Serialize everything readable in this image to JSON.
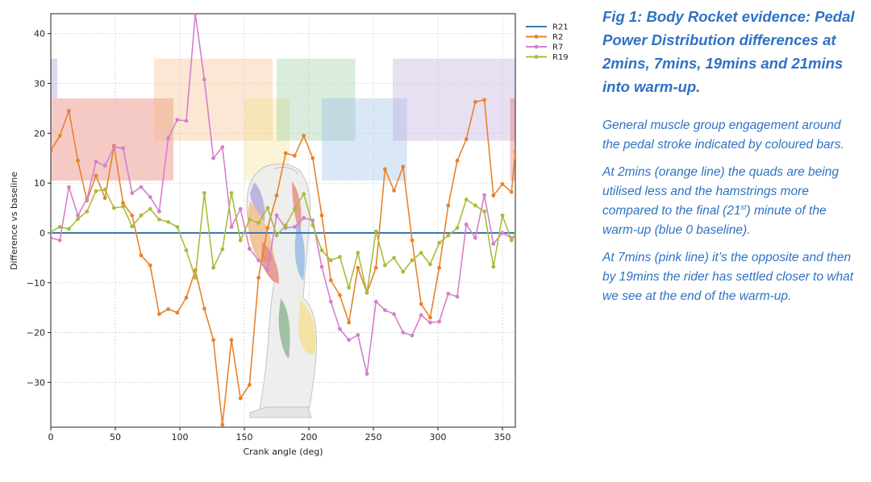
{
  "chart_data": {
    "type": "line",
    "xlabel": "Crank angle (deg)",
    "ylabel": "Difference vs baseline",
    "xlim": [
      0,
      360
    ],
    "ylim": [
      -39,
      44
    ],
    "xticks": [
      0,
      50,
      100,
      150,
      200,
      250,
      300,
      350
    ],
    "yticks": [
      -30,
      -20,
      -10,
      0,
      10,
      20,
      30,
      40
    ],
    "grid": true,
    "legend_position": "outside-top-right",
    "muscle_bands": [
      {
        "color": "#e05a4a",
        "x0": 0,
        "x1": 95,
        "y0": 10.5,
        "y1": 27
      },
      {
        "color": "#9a85c9",
        "x0": 0,
        "x1": 5,
        "y0": 27,
        "y1": 35
      },
      {
        "color": "#f2b577",
        "x0": 80,
        "x1": 172,
        "y0": 18.5,
        "y1": 35
      },
      {
        "color": "#f3de84",
        "x0": 150,
        "x1": 185,
        "y0": 10.5,
        "y1": 27
      },
      {
        "color": "#8cc496",
        "x0": 175,
        "x1": 236,
        "y0": 18.5,
        "y1": 35
      },
      {
        "color": "#8cb4e6",
        "x0": 210,
        "x1": 276,
        "y0": 10.5,
        "y1": 27
      },
      {
        "color": "#b59ad6",
        "x0": 265,
        "x1": 360,
        "y0": 18.5,
        "y1": 35
      },
      {
        "color": "#e05a4a",
        "x0": 356,
        "x1": 360,
        "y0": 10.5,
        "y1": 27
      }
    ],
    "series": [
      {
        "name": "R21",
        "color": "#3a78b0",
        "marker": false,
        "x": [
          0,
          360
        ],
        "y": [
          0,
          0
        ]
      },
      {
        "name": "R2",
        "color": "#e8822a",
        "marker": true,
        "x": [
          0,
          7,
          14,
          21,
          28,
          35,
          42,
          49,
          56,
          63,
          70,
          77,
          84,
          91,
          98,
          105,
          112,
          119,
          126,
          133,
          140,
          147,
          154,
          161,
          168,
          175,
          182,
          189,
          196,
          203,
          210,
          217,
          224,
          231,
          238,
          245,
          252,
          259,
          266,
          273,
          280,
          287,
          294,
          301,
          308,
          315,
          322,
          329,
          336,
          343,
          350,
          357,
          360
        ],
        "y": [
          16.5,
          19.5,
          24.5,
          14.5,
          6.5,
          11.5,
          7,
          17.5,
          6,
          3.5,
          -4.5,
          -6.5,
          -16.3,
          -15.3,
          -16,
          -13,
          -7.5,
          -15.2,
          -21.5,
          -38.5,
          -21.5,
          -33.2,
          -30.5,
          -9,
          1,
          7.5,
          16,
          15.5,
          19.5,
          15,
          3.5,
          -9.5,
          -12.5,
          -18,
          -7,
          -12,
          -7,
          12.8,
          8.5,
          13.3,
          -1.5,
          -14.3,
          -17,
          -7,
          5.5,
          14.5,
          18.8,
          26.3,
          26.7,
          7.5,
          9.8,
          8.2,
          16.3
        ]
      },
      {
        "name": "R7",
        "color": "#d57fcb",
        "marker": true,
        "x": [
          0,
          7,
          14,
          21,
          28,
          35,
          42,
          49,
          56,
          63,
          70,
          77,
          84,
          91,
          98,
          105,
          112,
          119,
          126,
          133,
          140,
          147,
          154,
          161,
          168,
          175,
          182,
          189,
          196,
          203,
          210,
          217,
          224,
          231,
          238,
          245,
          252,
          259,
          266,
          273,
          280,
          287,
          294,
          301,
          308,
          315,
          322,
          329,
          336,
          343,
          350,
          357,
          360
        ],
        "y": [
          -1,
          -1.5,
          9.2,
          3.5,
          6.8,
          14.3,
          13.5,
          17.2,
          17,
          8,
          9.2,
          7.2,
          4.3,
          19,
          22.7,
          22.5,
          44,
          30.8,
          15,
          17.2,
          1.2,
          4.8,
          -3.2,
          -5.5,
          -7.5,
          3.5,
          1,
          1.2,
          3,
          2.5,
          -6.8,
          -13.8,
          -19.3,
          -21.5,
          -20.5,
          -28.3,
          -13.8,
          -15.5,
          -16.3,
          -20,
          -20.6,
          -16.5,
          -18,
          -17.8,
          -12.2,
          -12.8,
          1.7,
          -1,
          7.6,
          -2.2,
          0,
          -1,
          -0.8
        ]
      },
      {
        "name": "R19",
        "color": "#a9bc3d",
        "marker": true,
        "x": [
          0,
          7,
          14,
          21,
          28,
          35,
          42,
          49,
          56,
          63,
          70,
          77,
          84,
          91,
          98,
          105,
          112,
          119,
          126,
          133,
          140,
          147,
          154,
          161,
          168,
          175,
          182,
          189,
          196,
          203,
          210,
          217,
          224,
          231,
          238,
          245,
          252,
          259,
          266,
          273,
          280,
          287,
          294,
          301,
          308,
          315,
          322,
          329,
          336,
          343,
          350,
          357,
          360
        ],
        "y": [
          0.2,
          1.2,
          0.8,
          2.8,
          4.3,
          8.4,
          8.7,
          5,
          5.3,
          1.3,
          3.5,
          4.8,
          2.7,
          2.2,
          1.2,
          -3.5,
          -9,
          8,
          -7,
          -3.3,
          8,
          -1.5,
          2.7,
          2,
          5,
          -0.5,
          1.5,
          4.8,
          7.8,
          1.5,
          -3.5,
          -5.5,
          -4.8,
          -11,
          -4,
          -12,
          0.3,
          -6.5,
          -5,
          -7.8,
          -5.5,
          -4,
          -6.3,
          -2,
          -0.5,
          1,
          6.7,
          5.5,
          4.3,
          -6.8,
          3.5,
          -1.5,
          -0.3
        ]
      }
    ]
  },
  "caption": {
    "title": "Fig 1: Body Rocket evidence: Pedal Power Distribution differences at 2mins, 7mins, 19mins and 21mins into warm-up.",
    "para1": "General muscle group engagement around the pedal stroke indicated by coloured bars.",
    "para2_before": "At 2mins (orange line) the quads are being utilised less and the hamstrings more compared to the final (21",
    "para2_sup": "st",
    "para2_after": ") minute of the warm-up (blue 0 baseline).",
    "para3": "At 7mins (pink line) it’s the opposite and then by 19mins the rider has settled closer to what we see at the end of the warm-up."
  }
}
